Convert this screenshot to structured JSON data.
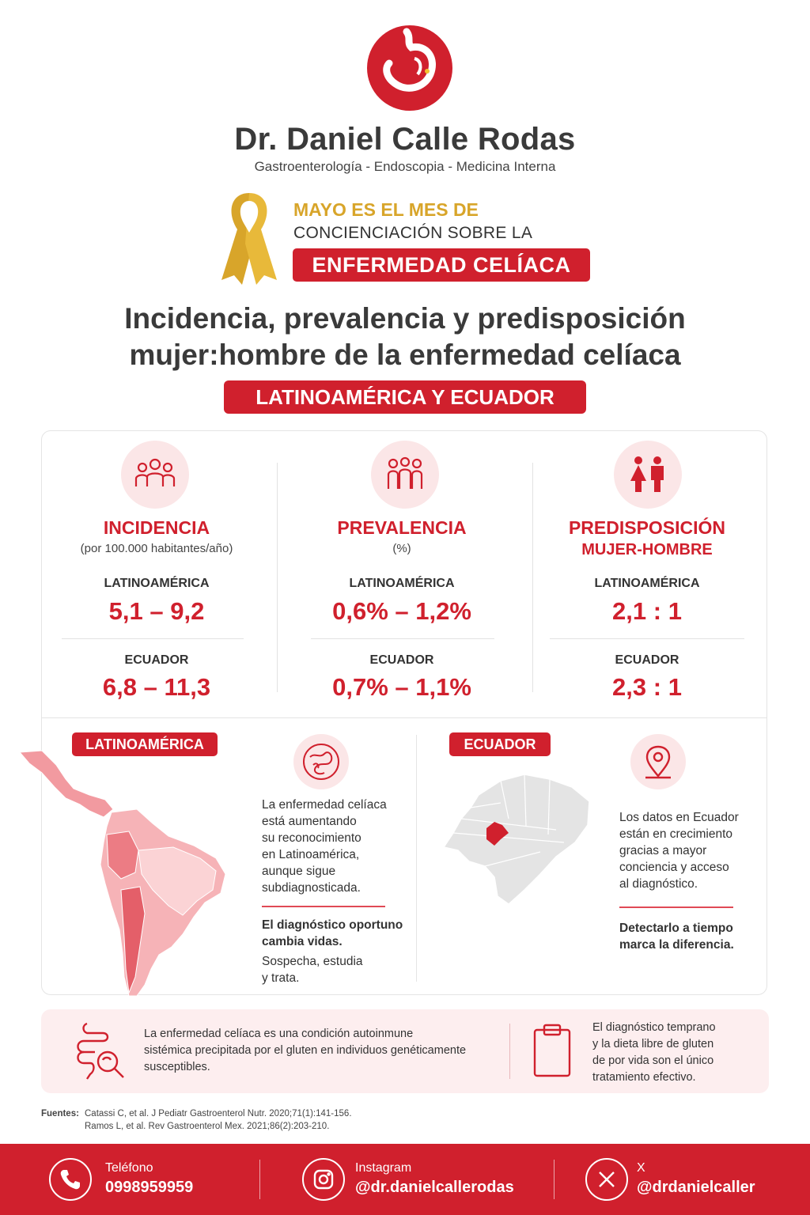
{
  "brand": {
    "name": "Dr. Daniel Calle Rodas",
    "specialties": "Gastroenterología - Endoscopia - Medicina Interna"
  },
  "campaign": {
    "line1": "MAYO ES EL MES DE",
    "line2": "CONCIENCIACIÓN SOBRE LA",
    "highlight": "ENFERMEDAD CELÍACA"
  },
  "title": {
    "line1": "Incidencia, prevalencia y predisposición",
    "line2": "mujer:hombre de la enfermedad celíaca",
    "region": "LATINOAMÉRICA Y ECUADOR"
  },
  "stats": [
    {
      "icon": "group-people-icon",
      "title": "INCIDENCIA",
      "subtitle": "(por 100.000 habitantes/año)",
      "latam_label": "LATINOAMÉRICA",
      "latam_value": "5,1 – 9,2",
      "ecuador_label": "ECUADOR",
      "ecuador_value": "6,8 – 11,3"
    },
    {
      "icon": "population-icon",
      "title": "PREVALENCIA",
      "subtitle": "(%)",
      "latam_label": "LATINOAMÉRICA",
      "latam_value": "0,6% – 1,2%",
      "ecuador_label": "ECUADOR",
      "ecuador_value": "0,7% – 1,1%"
    },
    {
      "icon": "woman-man-icon",
      "title": "PREDISPOSICIÓN",
      "title2": "MUJER-HOMBRE",
      "latam_label": "LATINOAMÉRICA",
      "latam_value": "2,1 : 1",
      "ecuador_label": "ECUADOR",
      "ecuador_value": "2,3 : 1"
    }
  ],
  "latam_panel": {
    "tag": "LATINOAMÉRICA",
    "icon": "intestine-icon",
    "text": [
      "La enfermedad celíaca",
      "está aumentando",
      "su reconocimiento",
      "en Latinoamérica,",
      "aunque sigue",
      "subdiagnosticada."
    ],
    "bold": [
      "El diagnóstico oportuno",
      "cambia vidas."
    ],
    "closing": [
      "Sospecha, estudia",
      "y trata."
    ]
  },
  "ecuador_panel": {
    "tag": "ECUADOR",
    "icon": "location-pin-icon",
    "text": [
      "Los datos en Ecuador",
      "están en crecimiento",
      "gracias a mayor",
      "conciencia y acceso",
      "al diagnóstico."
    ],
    "bold": [
      "Detectarlo a tiempo",
      "marca la diferencia."
    ]
  },
  "bottom": {
    "left_text": [
      "La enfermedad celíaca es una condición autoinmune",
      "sistémica precipitada por el gluten en individuos genéticamente",
      "susceptibles."
    ],
    "right_text": [
      "El diagnóstico temprano",
      "y la dieta libre de gluten",
      "de por vida son el único",
      "tratamiento efectivo."
    ]
  },
  "sources": {
    "label": "Fuentes:",
    "line1": "Catassi C, et al. J Pediatr Gastroenterol Nutr. 2020;71(1):141-156.",
    "line2": "Ramos L, et al. Rev Gastroenterol Mex. 2021;86(2):203-210."
  },
  "footer": {
    "phone_label": "Teléfono",
    "phone_value": "0998959959",
    "instagram_label": "Instagram",
    "instagram_value": "@dr.danielcallerodas",
    "x_label": "X",
    "x_value": "@drdanielcaller"
  },
  "colors": {
    "accent": "#d0202d",
    "gold": "#d8a52a",
    "pink_bg": "#fdeeef"
  }
}
